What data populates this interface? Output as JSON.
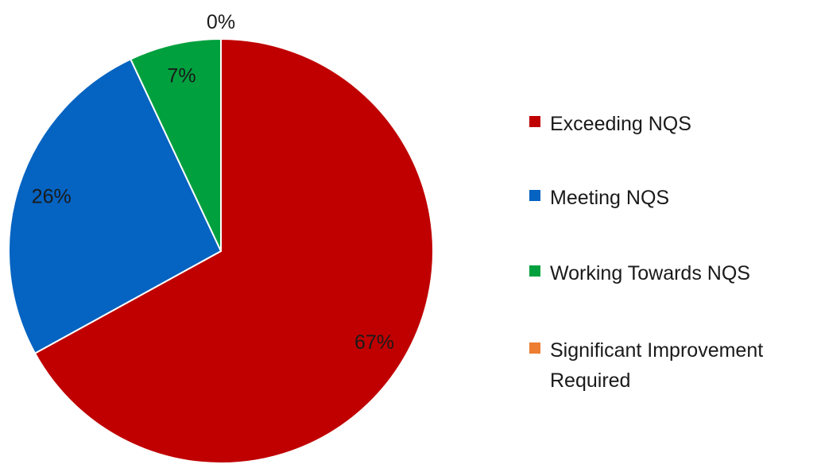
{
  "chart_data": {
    "type": "pie",
    "slices": [
      {
        "label": "Exceeding NQS",
        "value": 67,
        "display": "67%",
        "color": "#c00000"
      },
      {
        "label": "Meeting NQS",
        "value": 26,
        "display": "26%",
        "color": "#0563c1"
      },
      {
        "label": "Working Towards NQS",
        "value": 7,
        "display": "7%",
        "color": "#00a03e"
      },
      {
        "label": "Significant Improvement Required",
        "value": 0,
        "display": "0%",
        "color": "#ed7d31"
      }
    ],
    "legend_position": "right",
    "start_angle": "top",
    "direction": "clockwise"
  }
}
